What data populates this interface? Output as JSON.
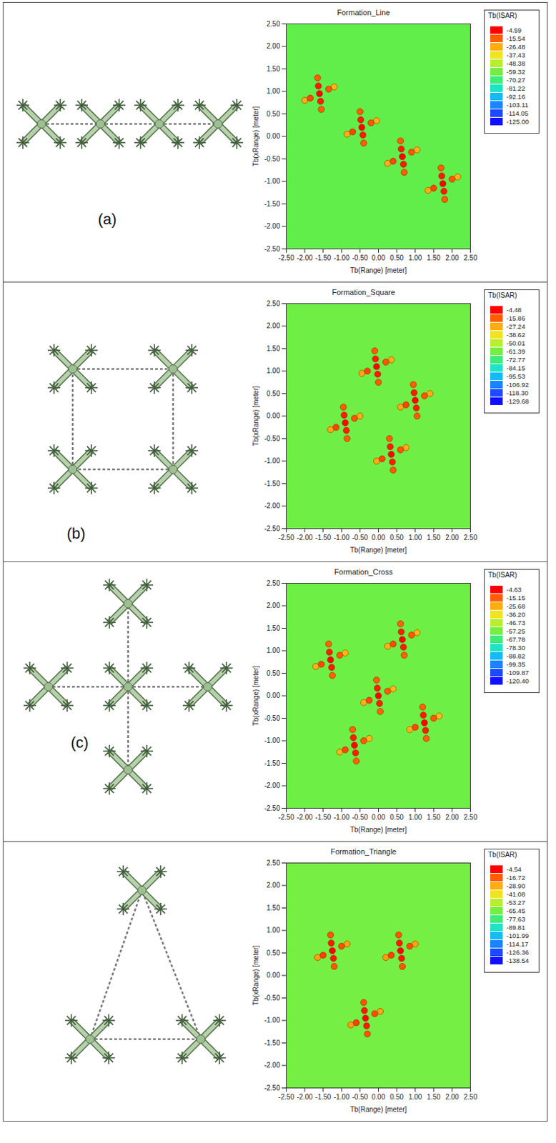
{
  "chart_data": [
    {
      "panel_label": "(a)",
      "type": "scatter",
      "title": "Formation_Line",
      "xlabel": "Tb(Range) [meter]",
      "ylabel": "Tb(xRange) [meter]",
      "xlim": [
        -2.5,
        2.5
      ],
      "ylim": [
        -2.5,
        2.5
      ],
      "xticks": [
        {
          "value": -2.5,
          "label": "-2.50"
        },
        {
          "value": -2,
          "label": "-2.00"
        },
        {
          "value": -1.5,
          "label": "-1.50"
        },
        {
          "value": -1,
          "label": "-1.00"
        },
        {
          "value": -0.5,
          "label": "-0.50"
        },
        {
          "value": 0,
          "label": "0.00"
        },
        {
          "value": 0.5,
          "label": "0.50"
        },
        {
          "value": 1,
          "label": "1.00"
        },
        {
          "value": 1.5,
          "label": "1.50"
        },
        {
          "value": 2,
          "label": "2.00"
        },
        {
          "value": 2.5,
          "label": "2.50"
        }
      ],
      "yticks": [
        {
          "value": -2.5,
          "label": "-2.50"
        },
        {
          "value": -2,
          "label": "-2.00"
        },
        {
          "value": -1.5,
          "label": "-1.50"
        },
        {
          "value": -1,
          "label": "-1.00"
        },
        {
          "value": -0.5,
          "label": "-0.50"
        },
        {
          "value": 0,
          "label": "0.00"
        },
        {
          "value": 0.5,
          "label": "0.50"
        },
        {
          "value": 1,
          "label": "1.00"
        },
        {
          "value": 1.5,
          "label": "1.50"
        },
        {
          "value": 2,
          "label": "2.00"
        },
        {
          "value": 2.5,
          "label": "2.50"
        }
      ],
      "background": -62,
      "points": [
        [
          -1.6,
          0.95,
          -5
        ],
        [
          -1.63,
          1.12,
          -8
        ],
        [
          -1.57,
          0.78,
          -8
        ],
        [
          -1.65,
          1.3,
          -16
        ],
        [
          -1.55,
          0.6,
          -16
        ],
        [
          -1.85,
          0.85,
          -13
        ],
        [
          -1.35,
          1.05,
          -15
        ],
        [
          -2.0,
          0.8,
          -27
        ],
        [
          -1.2,
          1.1,
          -28
        ],
        [
          -0.45,
          0.2,
          -5
        ],
        [
          -0.48,
          0.37,
          -8
        ],
        [
          -0.42,
          0.03,
          -8
        ],
        [
          -0.5,
          0.55,
          -16
        ],
        [
          -0.4,
          -0.15,
          -16
        ],
        [
          -0.7,
          0.1,
          -13
        ],
        [
          -0.2,
          0.3,
          -15
        ],
        [
          -0.85,
          0.05,
          -27
        ],
        [
          -0.05,
          0.35,
          -28
        ],
        [
          0.65,
          -0.45,
          -5
        ],
        [
          0.62,
          -0.28,
          -8
        ],
        [
          0.68,
          -0.62,
          -8
        ],
        [
          0.6,
          -0.1,
          -16
        ],
        [
          0.7,
          -0.8,
          -16
        ],
        [
          0.4,
          -0.55,
          -13
        ],
        [
          0.9,
          -0.35,
          -15
        ],
        [
          0.25,
          -0.6,
          -27
        ],
        [
          1.05,
          -0.3,
          -28
        ],
        [
          1.75,
          -1.05,
          -5
        ],
        [
          1.72,
          -0.88,
          -8
        ],
        [
          1.78,
          -1.22,
          -8
        ],
        [
          1.7,
          -0.7,
          -16
        ],
        [
          1.8,
          -1.4,
          -16
        ],
        [
          1.5,
          -1.15,
          -13
        ],
        [
          2.0,
          -0.95,
          -15
        ],
        [
          1.35,
          -1.2,
          -27
        ],
        [
          2.15,
          -0.9,
          -28
        ]
      ],
      "colorbar": {
        "title": "Tb(ISAR)",
        "range": [
          -125,
          -4.59
        ],
        "ticks": [
          -4.59,
          -15.54,
          -26.48,
          -37.43,
          -48.38,
          -59.32,
          -70.27,
          -81.22,
          -92.16,
          -103.11,
          -114.05,
          {
            "value": -125,
            "label": "-125.00"
          }
        ]
      }
    },
    {
      "panel_label": "(b)",
      "type": "scatter",
      "title": "Formation_Square",
      "xlabel": "Tb(Range) [meter]",
      "ylabel": "Tb(xRange) [meter]",
      "xlim": [
        -2.5,
        2.5
      ],
      "ylim": [
        -2.5,
        2.5
      ],
      "xticks": [
        {
          "value": -2.5,
          "label": "-2.50"
        },
        {
          "value": -2,
          "label": "-2.00"
        },
        {
          "value": -1.5,
          "label": "-1.50"
        },
        {
          "value": -1,
          "label": "-1.00"
        },
        {
          "value": -0.5,
          "label": "-0.50"
        },
        {
          "value": 0,
          "label": "0.00"
        },
        {
          "value": 0.5,
          "label": "0.50"
        },
        {
          "value": 1,
          "label": "1.00"
        },
        {
          "value": 1.5,
          "label": "1.50"
        },
        {
          "value": 2,
          "label": "2.00"
        },
        {
          "value": 2.5,
          "label": "2.50"
        }
      ],
      "yticks": [
        {
          "value": -2.5,
          "label": "-2.50"
        },
        {
          "value": -2,
          "label": "-2.00"
        },
        {
          "value": -1.5,
          "label": "-1.50"
        },
        {
          "value": -1,
          "label": "-1.00"
        },
        {
          "value": -0.5,
          "label": "-0.50"
        },
        {
          "value": 0,
          "label": "0.00"
        },
        {
          "value": 0.5,
          "label": "0.50"
        },
        {
          "value": 1,
          "label": "1.00"
        },
        {
          "value": 1.5,
          "label": "1.50"
        },
        {
          "value": 2,
          "label": "2.00"
        },
        {
          "value": 2.5,
          "label": "2.50"
        }
      ],
      "background": -62,
      "points": [
        [
          -0.05,
          1.1,
          -5
        ],
        [
          -0.08,
          1.27,
          -8
        ],
        [
          -0.02,
          0.93,
          -8
        ],
        [
          -0.1,
          1.45,
          -16
        ],
        [
          0,
          0.75,
          -16
        ],
        [
          -0.3,
          1.0,
          -13
        ],
        [
          0.2,
          1.2,
          -15
        ],
        [
          -0.45,
          0.95,
          -27
        ],
        [
          0.35,
          1.25,
          -28
        ],
        [
          1.0,
          0.35,
          -5
        ],
        [
          0.97,
          0.52,
          -8
        ],
        [
          1.03,
          0.18,
          -8
        ],
        [
          0.95,
          0.7,
          -16
        ],
        [
          1.05,
          0,
          -16
        ],
        [
          0.75,
          0.25,
          -13
        ],
        [
          1.25,
          0.45,
          -15
        ],
        [
          0.6,
          0.2,
          -27
        ],
        [
          1.4,
          0.5,
          -28
        ],
        [
          -0.9,
          -0.15,
          -5
        ],
        [
          -0.93,
          0.02,
          -8
        ],
        [
          -0.87,
          -0.32,
          -8
        ],
        [
          -0.95,
          0.2,
          -16
        ],
        [
          -0.85,
          -0.5,
          -16
        ],
        [
          -1.15,
          -0.25,
          -13
        ],
        [
          -0.65,
          -0.05,
          -15
        ],
        [
          -1.3,
          -0.3,
          -27
        ],
        [
          -0.5,
          0,
          -28
        ],
        [
          0.35,
          -0.85,
          -5
        ],
        [
          0.32,
          -0.68,
          -8
        ],
        [
          0.38,
          -1.02,
          -8
        ],
        [
          0.3,
          -0.5,
          -16
        ],
        [
          0.4,
          -1.2,
          -16
        ],
        [
          0.1,
          -0.95,
          -13
        ],
        [
          0.6,
          -0.75,
          -15
        ],
        [
          -0.05,
          -1.0,
          -27
        ],
        [
          0.75,
          -0.7,
          -28
        ]
      ],
      "colorbar": {
        "title": "Tb(ISAR)",
        "range": [
          -129.68,
          -4.48
        ],
        "ticks": [
          -4.48,
          -15.86,
          -27.24,
          -38.62,
          -50.01,
          -61.39,
          -72.77,
          -84.15,
          -95.53,
          -106.92,
          {
            "value": -118.3,
            "label": "-118.30"
          },
          -129.68
        ]
      }
    },
    {
      "panel_label": "(c)",
      "type": "scatter",
      "title": "Formation_Cross",
      "xlabel": "Tb(Range) [meter]",
      "ylabel": "Tb(xRange) [meter]",
      "xlim": [
        -2.5,
        2.5
      ],
      "ylim": [
        -2.5,
        2.5
      ],
      "xticks": [
        {
          "value": -2.5,
          "label": "-2.50"
        },
        {
          "value": -2,
          "label": "-2.00"
        },
        {
          "value": -1.5,
          "label": "-1.50"
        },
        {
          "value": -1,
          "label": "-1.00"
        },
        {
          "value": -0.5,
          "label": "-0.50"
        },
        {
          "value": 0,
          "label": "0.00"
        },
        {
          "value": 0.5,
          "label": "0.50"
        },
        {
          "value": 1,
          "label": "1.00"
        },
        {
          "value": 1.5,
          "label": "1.50"
        },
        {
          "value": 2,
          "label": "2.00"
        },
        {
          "value": 2.5,
          "label": "2.50"
        }
      ],
      "yticks": [
        {
          "value": -2.5,
          "label": "-2.50"
        },
        {
          "value": -2,
          "label": "-2.00"
        },
        {
          "value": -1.5,
          "label": "-1.50"
        },
        {
          "value": -1,
          "label": "-1.00"
        },
        {
          "value": -0.5,
          "label": "-0.50"
        },
        {
          "value": 0,
          "label": "0.00"
        },
        {
          "value": 0.5,
          "label": "0.50"
        },
        {
          "value": 1,
          "label": "1.00"
        },
        {
          "value": 1.5,
          "label": "1.50"
        },
        {
          "value": 2,
          "label": "2.00"
        },
        {
          "value": 2.5,
          "label": "2.50"
        }
      ],
      "background": -58,
      "points": [
        [
          -1.3,
          0.8,
          -5
        ],
        [
          -1.33,
          0.97,
          -8
        ],
        [
          -1.27,
          0.63,
          -8
        ],
        [
          -1.35,
          1.15,
          -16
        ],
        [
          -1.25,
          0.45,
          -16
        ],
        [
          -1.55,
          0.7,
          -13
        ],
        [
          -1.05,
          0.9,
          -15
        ],
        [
          -1.7,
          0.65,
          -27
        ],
        [
          -0.9,
          0.95,
          -28
        ],
        [
          0.65,
          1.25,
          -5
        ],
        [
          0.62,
          1.42,
          -8
        ],
        [
          0.68,
          1.08,
          -8
        ],
        [
          0.6,
          1.6,
          -16
        ],
        [
          0.7,
          0.9,
          -16
        ],
        [
          0.4,
          1.15,
          -13
        ],
        [
          0.9,
          1.35,
          -15
        ],
        [
          0.25,
          1.1,
          -27
        ],
        [
          1.05,
          1.4,
          -28
        ],
        [
          0,
          0,
          -5
        ],
        [
          -0.03,
          0.17,
          -8
        ],
        [
          0.03,
          -0.17,
          -8
        ],
        [
          -0.05,
          0.35,
          -16
        ],
        [
          0.05,
          -0.35,
          -16
        ],
        [
          -0.25,
          -0.1,
          -13
        ],
        [
          0.25,
          0.1,
          -15
        ],
        [
          -0.4,
          -0.15,
          -27
        ],
        [
          0.4,
          0.15,
          -28
        ],
        [
          -0.65,
          -1.1,
          -5
        ],
        [
          -0.68,
          -0.93,
          -8
        ],
        [
          -0.62,
          -1.27,
          -8
        ],
        [
          -0.7,
          -0.75,
          -16
        ],
        [
          -0.6,
          -1.45,
          -16
        ],
        [
          -0.9,
          -1.2,
          -13
        ],
        [
          -0.4,
          -1.0,
          -15
        ],
        [
          -1.05,
          -1.25,
          -27
        ],
        [
          -0.25,
          -0.95,
          -28
        ],
        [
          1.25,
          -0.6,
          -5
        ],
        [
          1.22,
          -0.43,
          -8
        ],
        [
          1.28,
          -0.77,
          -8
        ],
        [
          1.2,
          -0.25,
          -16
        ],
        [
          1.3,
          -0.95,
          -16
        ],
        [
          1.0,
          -0.7,
          -13
        ],
        [
          1.5,
          -0.5,
          -15
        ],
        [
          0.85,
          -0.75,
          -27
        ],
        [
          1.65,
          -0.45,
          -28
        ]
      ],
      "colorbar": {
        "title": "Tb(ISAR)",
        "range": [
          -120.4,
          -4.63
        ],
        "ticks": [
          -4.63,
          -15.15,
          -25.68,
          {
            "value": -36.2,
            "label": "-36.20"
          },
          -46.73,
          -57.25,
          -67.78,
          {
            "value": -78.3,
            "label": "-78.30"
          },
          -88.82,
          -99.35,
          -109.87,
          {
            "value": -120.4,
            "label": "-120.40"
          }
        ]
      }
    },
    {
      "type": "scatter",
      "title": "Formation_Triangle",
      "xlabel": "Tb(Range) [meter]",
      "ylabel": "Tb(xRange) [meter]",
      "xlim": [
        -2.5,
        2.5
      ],
      "ylim": [
        -2.5,
        2.5
      ],
      "xticks": [
        {
          "value": -2.5,
          "label": "-2.50"
        },
        {
          "value": -2,
          "label": "-2.00"
        },
        {
          "value": -1.5,
          "label": "-1.50"
        },
        {
          "value": -1,
          "label": "-1.00"
        },
        {
          "value": -0.5,
          "label": "-0.50"
        },
        {
          "value": 0,
          "label": "0.00"
        },
        {
          "value": 0.5,
          "label": "0.50"
        },
        {
          "value": 1,
          "label": "1.00"
        },
        {
          "value": 1.5,
          "label": "1.50"
        },
        {
          "value": 2,
          "label": "2.00"
        },
        {
          "value": 2.5,
          "label": "2.50"
        }
      ],
      "yticks": [
        {
          "value": -2.5,
          "label": "-2.50"
        },
        {
          "value": -2,
          "label": "-2.00"
        },
        {
          "value": -1.5,
          "label": "-1.50"
        },
        {
          "value": -1,
          "label": "-1.00"
        },
        {
          "value": -0.5,
          "label": "-0.50"
        },
        {
          "value": 0,
          "label": "0.00"
        },
        {
          "value": 0.5,
          "label": "0.50"
        },
        {
          "value": 1,
          "label": "1.00"
        },
        {
          "value": 1.5,
          "label": "1.50"
        },
        {
          "value": 2,
          "label": "2.00"
        },
        {
          "value": 2.5,
          "label": "2.50"
        }
      ],
      "background": -65,
      "points": [
        [
          -1.25,
          0.55,
          -5
        ],
        [
          -1.28,
          0.72,
          -8
        ],
        [
          -1.22,
          0.38,
          -8
        ],
        [
          -1.3,
          0.9,
          -16
        ],
        [
          -1.2,
          0.2,
          -16
        ],
        [
          -1.5,
          0.45,
          -13
        ],
        [
          -1.0,
          0.65,
          -15
        ],
        [
          -1.65,
          0.4,
          -27
        ],
        [
          -0.85,
          0.7,
          -28
        ],
        [
          0.6,
          0.55,
          -5
        ],
        [
          0.57,
          0.72,
          -8
        ],
        [
          0.63,
          0.38,
          -8
        ],
        [
          0.55,
          0.9,
          -16
        ],
        [
          0.65,
          0.2,
          -16
        ],
        [
          0.35,
          0.45,
          -13
        ],
        [
          0.85,
          0.65,
          -15
        ],
        [
          0.2,
          0.4,
          -27
        ],
        [
          1.0,
          0.7,
          -28
        ],
        [
          -0.35,
          -0.95,
          -5
        ],
        [
          -0.38,
          -0.78,
          -8
        ],
        [
          -0.32,
          -1.12,
          -8
        ],
        [
          -0.4,
          -0.6,
          -16
        ],
        [
          -0.3,
          -1.3,
          -16
        ],
        [
          -0.6,
          -1.05,
          -13
        ],
        [
          -0.1,
          -0.85,
          -15
        ],
        [
          -0.75,
          -1.1,
          -27
        ],
        [
          0.05,
          -0.8,
          -28
        ]
      ],
      "colorbar": {
        "title": "Tb(ISAR)",
        "range": [
          -138.54,
          -4.54
        ],
        "ticks": [
          -4.54,
          -16.72,
          {
            "value": -28.9,
            "label": "-28.90"
          },
          -41.08,
          -53.27,
          -65.45,
          -77.63,
          -89.81,
          -101.99,
          -114.17,
          -126.36,
          -138.54
        ]
      }
    }
  ]
}
